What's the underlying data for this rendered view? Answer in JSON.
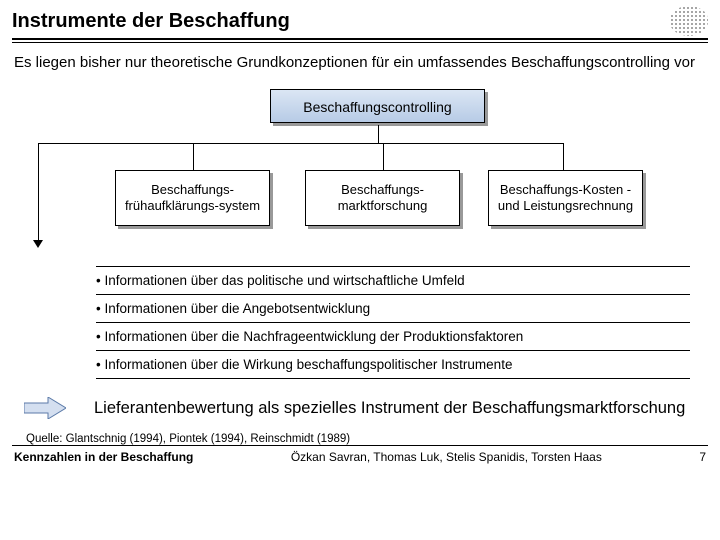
{
  "header": {
    "title": "Instrumente der Beschaffung"
  },
  "subtitle": "Es liegen bisher nur theoretische Grundkonzeptionen für ein umfassendes Beschaffungscontrolling vor",
  "diagram": {
    "type": "tree",
    "root": {
      "label": "Beschaffungscontrolling",
      "bg_gradient": [
        "#dbe6f4",
        "#b7cbe6"
      ]
    },
    "children": [
      {
        "label": "Beschaffungs-frühaufklärungs-system"
      },
      {
        "label": "Beschaffungs-marktforschung"
      },
      {
        "label": "Beschaffungs-Kosten -und Leistungsrechnung"
      }
    ],
    "box_border": "#000000",
    "box_shadow": "#999999",
    "line_color": "#000000"
  },
  "bullets": [
    "• Informationen über das politische und wirtschaftliche Umfeld",
    "• Informationen über die Angebotsentwicklung",
    "• Informationen über die Nachfrageentwicklung der Produktionsfaktoren",
    "• Informationen über die Wirkung beschaffungspolitischer Instrumente"
  ],
  "conclusion": {
    "text": "Lieferantenbewertung als spezielles Instrument der Beschaffungsmarktforschung",
    "arrow_colors": {
      "fill": "#d4dff0",
      "stroke": "#5b7aa8"
    }
  },
  "source": "Quelle: Glantschnig (1994), Piontek (1994), Reinschmidt (1989)",
  "footer": {
    "left": "Kennzahlen in der Beschaffung",
    "mid": "Özkan Savran, Thomas Luk, Stelis Spanidis, Torsten Haas",
    "page": "7"
  },
  "colors": {
    "background": "#ffffff",
    "text": "#000000",
    "divider": "#000000"
  }
}
